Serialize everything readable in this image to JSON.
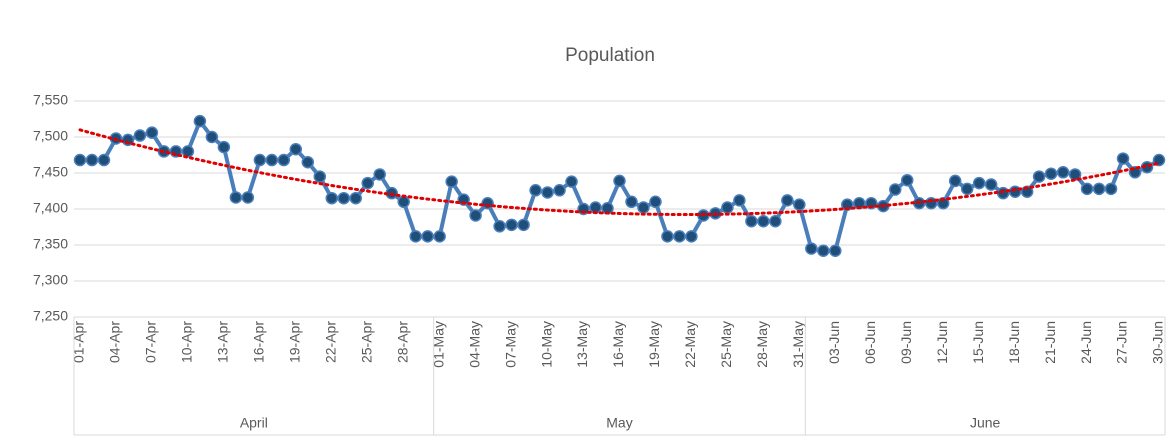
{
  "chart_data": {
    "type": "line",
    "title": "Population",
    "categories": [
      "01-Apr",
      null,
      null,
      "04-Apr",
      null,
      null,
      "07-Apr",
      null,
      null,
      "10-Apr",
      null,
      null,
      "13-Apr",
      null,
      null,
      "16-Apr",
      null,
      null,
      "19-Apr",
      null,
      null,
      "22-Apr",
      null,
      null,
      "25-Apr",
      null,
      null,
      "28-Apr",
      null,
      null,
      "01-May",
      null,
      null,
      "04-May",
      null,
      null,
      "07-May",
      null,
      null,
      "10-May",
      null,
      null,
      "13-May",
      null,
      null,
      "16-May",
      null,
      null,
      "19-May",
      null,
      null,
      "22-May",
      null,
      null,
      "25-May",
      null,
      null,
      "28-May",
      null,
      null,
      "31-May",
      null,
      null,
      "03-Jun",
      null,
      null,
      "06-Jun",
      null,
      null,
      "09-Jun",
      null,
      null,
      "12-Jun",
      null,
      null,
      "15-Jun",
      null,
      null,
      "18-Jun",
      null,
      null,
      "21-Jun",
      null,
      null,
      "24-Jun",
      null,
      null,
      "27-Jun",
      null,
      null,
      "30-Jun"
    ],
    "groups": [
      {
        "name": "April",
        "size": 30
      },
      {
        "name": "May",
        "size": 31
      },
      {
        "name": "June",
        "size": 30
      }
    ],
    "series": [
      {
        "color": "#4a7ebb",
        "marker_color": "#1f4e79",
        "values": [
          7468,
          7468,
          7468,
          7498,
          7496,
          7502,
          7506,
          7480,
          7480,
          7480,
          7522,
          7500,
          7486,
          7416,
          7416,
          7468,
          7468,
          7468,
          7483,
          7465,
          7445,
          7415,
          7415,
          7415,
          7436,
          7448,
          7422,
          7410,
          7362,
          7362,
          7362,
          7438,
          7413,
          7391,
          7408,
          7376,
          7378,
          7378,
          7426,
          7423,
          7426,
          7438,
          7400,
          7402,
          7401,
          7439,
          7410,
          7402,
          7410,
          7362,
          7362,
          7362,
          7391,
          7394,
          7402,
          7412,
          7383,
          7383,
          7383,
          7412,
          7406,
          7345,
          7342,
          7342,
          7406,
          7408,
          7408,
          7404,
          7427,
          7440,
          7408,
          7408,
          7408,
          7439,
          7428,
          7436,
          7434,
          7422,
          7424,
          7424,
          7445,
          7449,
          7451,
          7448,
          7428,
          7428,
          7428,
          7470,
          7451,
          7458,
          7468
        ]
      }
    ],
    "trendline": {
      "kind": "polynomial",
      "order": 2,
      "color": "#e00000"
    },
    "ylim": [
      7250,
      7550
    ],
    "yticks": [
      {
        "value": 7250,
        "label": "7,250"
      },
      {
        "value": 7300,
        "label": "7,300"
      },
      {
        "value": 7350,
        "label": "7,350"
      },
      {
        "value": 7400,
        "label": "7,400"
      },
      {
        "value": 7450,
        "label": "7,450"
      },
      {
        "value": 7500,
        "label": "7,500"
      },
      {
        "value": 7550,
        "label": "7,550"
      }
    ],
    "grid": true
  }
}
